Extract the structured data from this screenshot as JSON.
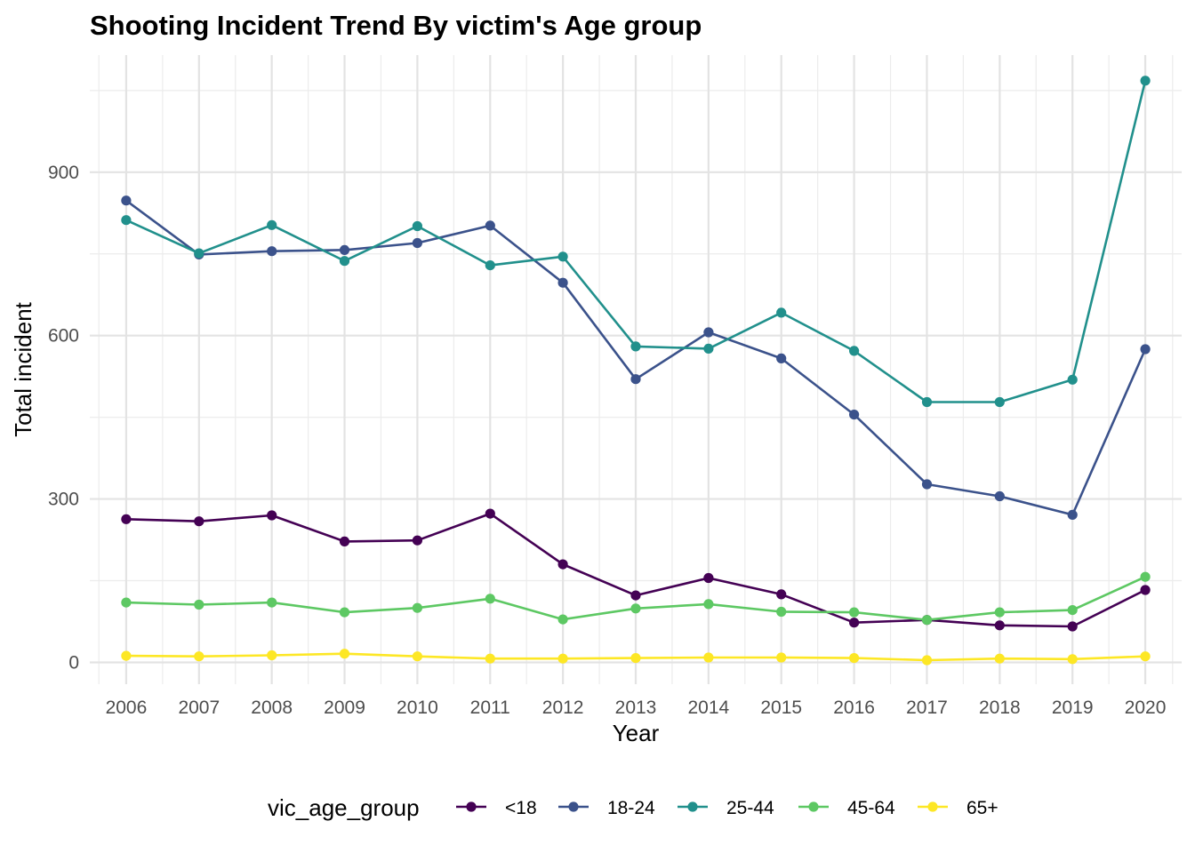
{
  "chart_data": {
    "type": "line",
    "title": "Shooting Incident Trend By victim's Age group",
    "xlabel": "Year",
    "ylabel": "Total incident",
    "x": [
      2006,
      2007,
      2008,
      2009,
      2010,
      2011,
      2012,
      2013,
      2014,
      2015,
      2016,
      2017,
      2018,
      2019,
      2020
    ],
    "xlim": [
      2005.5,
      2020.5
    ],
    "ylim": [
      -40,
      1115
    ],
    "y_ticks": [
      0,
      300,
      600,
      900
    ],
    "grid": true,
    "legend": {
      "title": "vic_age_group",
      "position": "bottom"
    },
    "series": [
      {
        "name": "<18",
        "color": "#440154",
        "values": [
          263,
          259,
          270,
          222,
          224,
          273,
          180,
          123,
          155,
          125,
          73,
          78,
          68,
          66,
          133
        ]
      },
      {
        "name": "18-24",
        "color": "#3B528B",
        "values": [
          848,
          749,
          755,
          757,
          770,
          802,
          697,
          520,
          606,
          558,
          455,
          327,
          305,
          271,
          575
        ]
      },
      {
        "name": "25-44",
        "color": "#21908C",
        "values": [
          812,
          751,
          803,
          737,
          801,
          729,
          745,
          580,
          576,
          642,
          572,
          478,
          478,
          519,
          1068
        ]
      },
      {
        "name": "45-64",
        "color": "#5DC863",
        "values": [
          110,
          106,
          110,
          92,
          100,
          117,
          79,
          99,
          107,
          93,
          92,
          78,
          92,
          96,
          157
        ]
      },
      {
        "name": "65+",
        "color": "#FDE725",
        "values": [
          12,
          11,
          13,
          16,
          11,
          7,
          7,
          8,
          9,
          9,
          8,
          4,
          7,
          6,
          11
        ]
      }
    ]
  }
}
